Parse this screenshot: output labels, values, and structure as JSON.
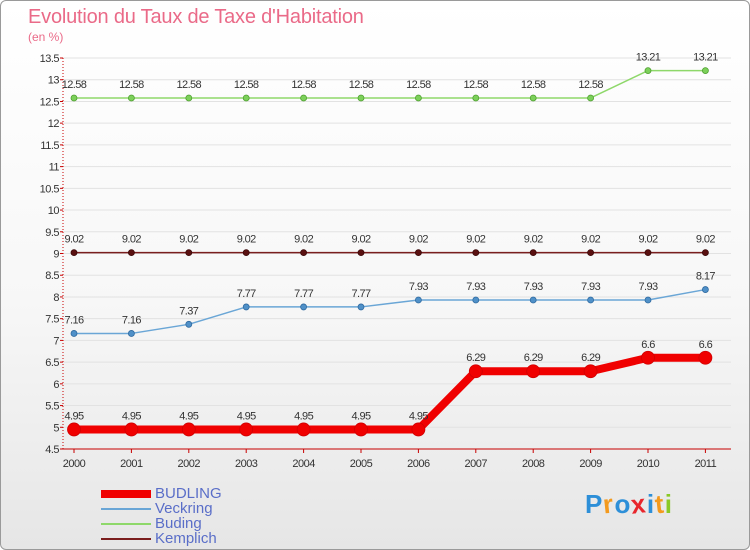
{
  "title": "Evolution du Taux de Taxe d'Habitation",
  "subtitle": "(en %)",
  "logo_text": "Proxiti",
  "chart_data": {
    "type": "line",
    "title": "Evolution du Taux de Taxe d'Habitation",
    "ylabel": "(en %)",
    "xlabel": "",
    "categories": [
      "2000",
      "2001",
      "2002",
      "2003",
      "2004",
      "2005",
      "2006",
      "2007",
      "2008",
      "2009",
      "2010",
      "2011"
    ],
    "ylim": [
      4.5,
      13.5
    ],
    "yticks": [
      "4.5",
      "5",
      "5.5",
      "6",
      "6.5",
      "7",
      "7.5",
      "8",
      "8.5",
      "9",
      "9.5",
      "10",
      "10.5",
      "11",
      "11.5",
      "12",
      "12.5",
      "13",
      "13.5"
    ],
    "legend_position": "bottom-left",
    "series": [
      {
        "name": "BUDLING",
        "color": "#f00000",
        "values": [
          4.95,
          4.95,
          4.95,
          4.95,
          4.95,
          4.95,
          4.95,
          6.29,
          6.29,
          6.29,
          6.6,
          6.6
        ],
        "labels": [
          "4.95",
          "4.95",
          "4.95",
          "4.95",
          "4.95",
          "4.95",
          "4.95",
          "6.29",
          "6.29",
          "6.29",
          "6.6",
          "6.6"
        ]
      },
      {
        "name": "Veckring",
        "color": "#6aa6d6",
        "values": [
          7.16,
          7.16,
          7.37,
          7.77,
          7.77,
          7.77,
          7.93,
          7.93,
          7.93,
          7.93,
          7.93,
          8.17
        ],
        "labels": [
          "7.16",
          "7.16",
          "7.37",
          "7.77",
          "7.77",
          "7.77",
          "7.93",
          "7.93",
          "7.93",
          "7.93",
          "7.93",
          "8.17"
        ]
      },
      {
        "name": "Buding",
        "color": "#8ed86a",
        "values": [
          12.58,
          12.58,
          12.58,
          12.58,
          12.58,
          12.58,
          12.58,
          12.58,
          12.58,
          12.58,
          13.21,
          13.21
        ],
        "labels": [
          "12.58",
          "12.58",
          "12.58",
          "12.58",
          "12.58",
          "12.58",
          "12.58",
          "12.58",
          "12.58",
          "12.58",
          "13.21",
          "13.21"
        ]
      },
      {
        "name": "Kemplich",
        "color": "#7a1e1e",
        "values": [
          9.02,
          9.02,
          9.02,
          9.02,
          9.02,
          9.02,
          9.02,
          9.02,
          9.02,
          9.02,
          9.02,
          9.02
        ],
        "labels": [
          "9.02",
          "9.02",
          "9.02",
          "9.02",
          "9.02",
          "9.02",
          "9.02",
          "9.02",
          "9.02",
          "9.02",
          "9.02",
          "9.02"
        ]
      }
    ]
  }
}
